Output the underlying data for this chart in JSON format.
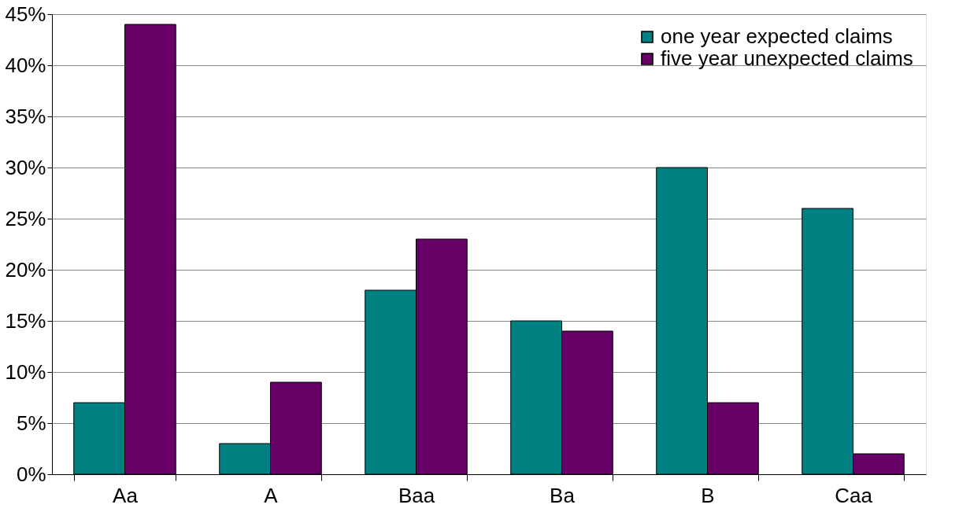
{
  "chart_data": {
    "type": "bar",
    "categories": [
      "Aa",
      "A",
      "Baa",
      "Ba",
      "B",
      "Caa"
    ],
    "series": [
      {
        "name": "one year expected claims",
        "color": "#008080",
        "values": [
          7,
          3,
          18,
          15,
          30,
          26
        ]
      },
      {
        "name": "five year unexpected claims",
        "color": "#660066",
        "values": [
          44,
          9,
          23,
          14,
          7,
          2
        ]
      }
    ],
    "ylim": [
      0,
      45
    ],
    "yticks": [
      {
        "value": 0,
        "label": "0%"
      },
      {
        "value": 5,
        "label": "5%"
      },
      {
        "value": 10,
        "label": "10%"
      },
      {
        "value": 15,
        "label": "15%"
      },
      {
        "value": 20,
        "label": "20%"
      },
      {
        "value": 25,
        "label": "25%"
      },
      {
        "value": 30,
        "label": "30%"
      },
      {
        "value": 35,
        "label": "35%"
      },
      {
        "value": 40,
        "label": "40%"
      },
      {
        "value": 45,
        "label": "45%"
      }
    ],
    "grid": "y",
    "legend": "top right"
  }
}
